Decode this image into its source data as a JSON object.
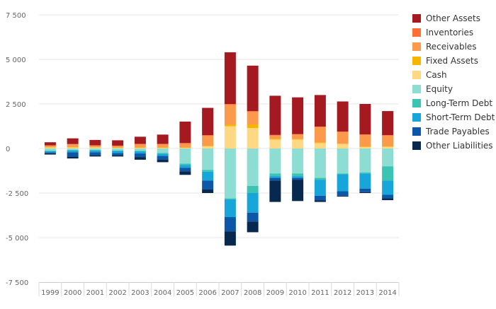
{
  "chart_data": {
    "type": "bar",
    "stacked": true,
    "categories": [
      "1999",
      "2000",
      "2001",
      "2002",
      "2003",
      "2004",
      "2005",
      "2006",
      "2007",
      "2008",
      "2009",
      "2010",
      "2011",
      "2012",
      "2013",
      "2014"
    ],
    "ylim": [
      -7500,
      7500
    ],
    "yticks": [
      {
        "value": 7500,
        "label": "7 500"
      },
      {
        "value": 5000,
        "label": "5 000"
      },
      {
        "value": 2500,
        "label": "2 500"
      },
      {
        "value": 0,
        "label": "0"
      },
      {
        "value": -2500,
        "label": "-2 500"
      },
      {
        "value": -5000,
        "label": "-5 000"
      },
      {
        "value": -7500,
        "label": "-7 500"
      }
    ],
    "grid": true,
    "legend_position": "right",
    "positive_series": [
      {
        "name": "Cash",
        "color": "#FED883",
        "values": [
          60,
          60,
          50,
          40,
          40,
          40,
          40,
          120,
          1250,
          1150,
          500,
          500,
          300,
          250,
          80,
          100
        ]
      },
      {
        "name": "Fixed Assets",
        "color": "#F7B500",
        "values": [
          20,
          20,
          20,
          20,
          20,
          20,
          20,
          30,
          100,
          200,
          50,
          30,
          50,
          20,
          30,
          20
        ]
      },
      {
        "name": "Receivables",
        "color": "#FB9A4A",
        "values": [
          80,
          150,
          90,
          80,
          180,
          180,
          200,
          550,
          1100,
          700,
          180,
          250,
          850,
          650,
          650,
          600
        ]
      },
      {
        "name": "Inventories",
        "color": "#FF6E37",
        "values": [
          20,
          20,
          20,
          20,
          20,
          20,
          50,
          50,
          50,
          50,
          30,
          30,
          30,
          30,
          30,
          30
        ]
      },
      {
        "name": "Other Assets",
        "color": "#A51A21",
        "values": [
          170,
          320,
          300,
          300,
          400,
          520,
          1200,
          1530,
          2900,
          2550,
          2200,
          2060,
          1770,
          1690,
          1710,
          1350
        ]
      }
    ],
    "negative_series": [
      {
        "name": "Equity",
        "color": "#8EDDD3",
        "values": [
          -120,
          -80,
          -80,
          -110,
          -130,
          -250,
          -850,
          -1200,
          -2800,
          -2100,
          -1400,
          -1400,
          -1650,
          -1400,
          -1350,
          -1000
        ]
      },
      {
        "name": "Long-Term Debt",
        "color": "#3BC4B1",
        "values": [
          -30,
          -30,
          -30,
          -30,
          -30,
          -50,
          -80,
          -100,
          -50,
          -400,
          -150,
          -150,
          -100,
          -50,
          -50,
          -800
        ]
      },
      {
        "name": "Short-Term Debt",
        "color": "#17A6D9",
        "values": [
          -70,
          -100,
          -100,
          -120,
          -120,
          -120,
          -150,
          -500,
          -1000,
          -1100,
          -100,
          -100,
          -900,
          -950,
          -850,
          -800
        ]
      },
      {
        "name": "Trade Payables",
        "color": "#0C57A8",
        "values": [
          -50,
          -250,
          -170,
          -120,
          -200,
          -200,
          -200,
          -500,
          -800,
          -500,
          -150,
          -100,
          -250,
          -250,
          -200,
          -200
        ]
      },
      {
        "name": "Other Liabilities",
        "color": "#06294D",
        "values": [
          -70,
          -100,
          -70,
          -70,
          -150,
          -150,
          -200,
          -200,
          -800,
          -600,
          -1200,
          -1200,
          -100,
          -50,
          -50,
          -100
        ]
      }
    ],
    "legend": [
      {
        "name": "Other Assets",
        "color": "#A51A21"
      },
      {
        "name": "Inventories",
        "color": "#FF6E37"
      },
      {
        "name": "Receivables",
        "color": "#FB9A4A"
      },
      {
        "name": "Fixed Assets",
        "color": "#F7B500"
      },
      {
        "name": "Cash",
        "color": "#FED883"
      },
      {
        "name": "Equity",
        "color": "#8EDDD3"
      },
      {
        "name": "Long-Term Debt",
        "color": "#3BC4B1"
      },
      {
        "name": "Short-Term Debt",
        "color": "#17A6D9"
      },
      {
        "name": "Trade Payables",
        "color": "#0C57A8"
      },
      {
        "name": "Other Liabilities",
        "color": "#06294D"
      }
    ]
  }
}
